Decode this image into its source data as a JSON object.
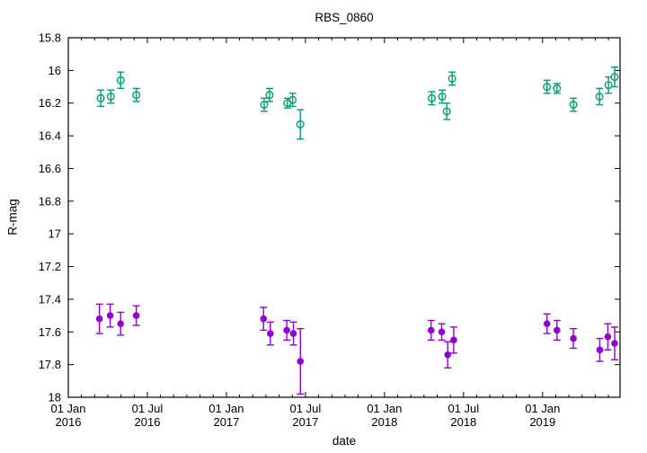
{
  "chart_data": {
    "type": "scatter",
    "title": "RBS_0860",
    "xlabel": "date",
    "ylabel": "R-mag",
    "grid": false,
    "legend": "none",
    "x_axis": {
      "unit": "decimal-year",
      "min": 2016.0,
      "max": 2019.49,
      "minor_ticks": "monthly",
      "major_ticks": [
        {
          "x": 2016.0,
          "line1": "01 Jan",
          "line2": "2016"
        },
        {
          "x": 2016.5,
          "line1": "01 Jul",
          "line2": "2016"
        },
        {
          "x": 2017.0,
          "line1": "01 Jan",
          "line2": "2017"
        },
        {
          "x": 2017.5,
          "line1": "01 Jul",
          "line2": "2017"
        },
        {
          "x": 2018.0,
          "line1": "01 Jan",
          "line2": "2018"
        },
        {
          "x": 2018.5,
          "line1": "01 Jul",
          "line2": "2018"
        },
        {
          "x": 2019.0,
          "line1": "01 Jan",
          "line2": "2019"
        }
      ]
    },
    "y_axis": {
      "unit": "magnitude",
      "min": 15.8,
      "max": 18.0,
      "inverted_magnitude_scale": true,
      "tick_step": 0.2,
      "ticks": [
        15.8,
        16,
        16.2,
        16.4,
        16.6,
        16.8,
        17,
        17.2,
        17.4,
        17.6,
        17.8,
        18
      ],
      "tick_labels": [
        "15.8",
        "16",
        "16.2",
        "16.4",
        "16.6",
        "16.8",
        "17",
        "17.2",
        "17.4",
        "17.6",
        "17.8",
        "18"
      ]
    },
    "series": [
      {
        "name": "green-open-circles",
        "marker": "open-circle",
        "color": "#009E73",
        "points": [
          {
            "x": 2016.205,
            "y": 16.17,
            "err": 0.05
          },
          {
            "x": 2016.269,
            "y": 16.16,
            "err": 0.04
          },
          {
            "x": 2016.331,
            "y": 16.06,
            "err": 0.05
          },
          {
            "x": 2016.43,
            "y": 16.15,
            "err": 0.04
          },
          {
            "x": 2017.239,
            "y": 16.21,
            "err": 0.04
          },
          {
            "x": 2017.273,
            "y": 16.15,
            "err": 0.04
          },
          {
            "x": 2017.386,
            "y": 16.2,
            "err": 0.03
          },
          {
            "x": 2017.419,
            "y": 16.18,
            "err": 0.04
          },
          {
            "x": 2017.468,
            "y": 16.33,
            "err": 0.09
          },
          {
            "x": 2018.299,
            "y": 16.17,
            "err": 0.04
          },
          {
            "x": 2018.365,
            "y": 16.16,
            "err": 0.04
          },
          {
            "x": 2018.394,
            "y": 16.25,
            "err": 0.05
          },
          {
            "x": 2018.428,
            "y": 16.05,
            "err": 0.04
          },
          {
            "x": 2019.028,
            "y": 16.1,
            "err": 0.04
          },
          {
            "x": 2019.091,
            "y": 16.11,
            "err": 0.03
          },
          {
            "x": 2019.195,
            "y": 16.21,
            "err": 0.04
          },
          {
            "x": 2019.36,
            "y": 16.16,
            "err": 0.05
          },
          {
            "x": 2019.417,
            "y": 16.09,
            "err": 0.05
          },
          {
            "x": 2019.456,
            "y": 16.04,
            "err": 0.06
          }
        ]
      },
      {
        "name": "purple-filled-circles",
        "marker": "filled-circle",
        "color": "#9400D3",
        "points": [
          {
            "x": 2016.197,
            "y": 17.52,
            "err": 0.09
          },
          {
            "x": 2016.265,
            "y": 17.5,
            "err": 0.07
          },
          {
            "x": 2016.331,
            "y": 17.55,
            "err": 0.07
          },
          {
            "x": 2016.43,
            "y": 17.5,
            "err": 0.06
          },
          {
            "x": 2017.235,
            "y": 17.52,
            "err": 0.07
          },
          {
            "x": 2017.278,
            "y": 17.61,
            "err": 0.07
          },
          {
            "x": 2017.382,
            "y": 17.59,
            "err": 0.06
          },
          {
            "x": 2017.424,
            "y": 17.61,
            "err": 0.07
          },
          {
            "x": 2017.468,
            "y": 17.78,
            "err": 0.2
          },
          {
            "x": 2018.295,
            "y": 17.59,
            "err": 0.06
          },
          {
            "x": 2018.362,
            "y": 17.6,
            "err": 0.05
          },
          {
            "x": 2018.4,
            "y": 17.74,
            "err": 0.08
          },
          {
            "x": 2018.438,
            "y": 17.65,
            "err": 0.08
          },
          {
            "x": 2019.028,
            "y": 17.55,
            "err": 0.06
          },
          {
            "x": 2019.091,
            "y": 17.59,
            "err": 0.06
          },
          {
            "x": 2019.195,
            "y": 17.64,
            "err": 0.06
          },
          {
            "x": 2019.362,
            "y": 17.71,
            "err": 0.07
          },
          {
            "x": 2019.413,
            "y": 17.63,
            "err": 0.08
          },
          {
            "x": 2019.456,
            "y": 17.67,
            "err": 0.1
          }
        ]
      }
    ]
  }
}
